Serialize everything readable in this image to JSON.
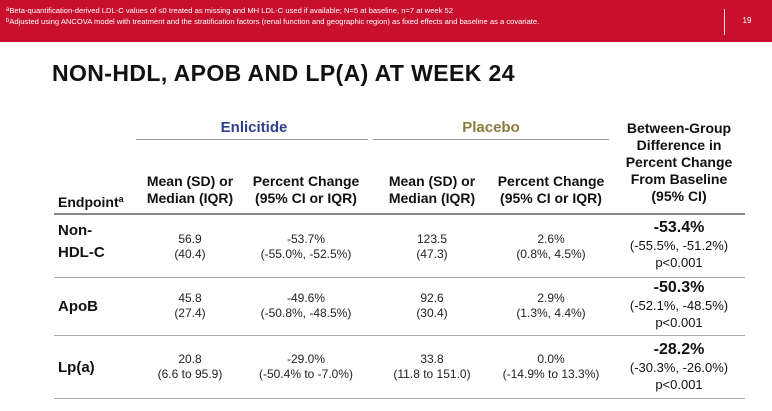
{
  "header": {
    "footnote_a": "Beta-quantification-derived LDL-C values of ≤0 treated as missing and MH LDL-C used if available; N=5 at baseline, n=7 at week 52",
    "footnote_b": "Adjusted using ANCOVA model with treatment and the stratification factors (renal function and geographic region) as fixed effects and baseline as a covariate.",
    "footnote_a_marker": "a",
    "footnote_b_marker": "b",
    "page_number": "19",
    "bar_color": "#c8102e"
  },
  "title": "NON-HDL, APOB AND LP(A) AT WEEK 24",
  "table": {
    "group_enlicitide": "Enlicitide",
    "group_placebo": "Placebo",
    "endpoint_header": "Endpoint",
    "endpoint_header_marker": "a",
    "mean_header_line1": "Mean (SD) or",
    "mean_header_line2": "Median (IQR)",
    "pct_header_line1": "Percent Change",
    "pct_header_line2": "(95% CI or IQR)",
    "between_header_line1": "Between-Group",
    "between_header_line2": "Difference in",
    "between_header_line3": "Percent Change",
    "between_header_line4": "From Baseline",
    "between_header_line5": "(95% CI)",
    "rows": [
      {
        "endpoint_line1": "Non-",
        "endpoint_line2": "HDL-C",
        "enl_mean_line1": "56.9",
        "enl_mean_line2": "(40.4)",
        "enl_pct_line1": "-53.7%",
        "enl_pct_line2": "(-55.0%, -52.5%)",
        "pla_mean_line1": "123.5",
        "pla_mean_line2": "(47.3)",
        "pla_pct_line1": "2.6%",
        "pla_pct_line2": "(0.8%, 4.5%)",
        "diff": "-53.4%",
        "diff_ci": "(-55.5%, -51.2%)",
        "p_value": "p<0.001"
      },
      {
        "endpoint_line1": "ApoB",
        "endpoint_line2": "",
        "enl_mean_line1": "45.8",
        "enl_mean_line2": "(27.4)",
        "enl_pct_line1": "-49.6%",
        "enl_pct_line2": "(-50.8%, -48.5%)",
        "pla_mean_line1": "92.6",
        "pla_mean_line2": "(30.4)",
        "pla_pct_line1": "2.9%",
        "pla_pct_line2": "(1.3%, 4.4%)",
        "diff": "-50.3%",
        "diff_ci": "(-52.1%, -48.5%)",
        "p_value": "p<0.001"
      },
      {
        "endpoint_line1": "Lp(a)",
        "endpoint_line2": "",
        "enl_mean_line1": "20.8",
        "enl_mean_line2": "(6.6 to 95.9)",
        "enl_pct_line1": "-29.0%",
        "enl_pct_line2": "(-50.4% to -7.0%)",
        "pla_mean_line1": "33.8",
        "pla_mean_line2": "(11.8 to 151.0)",
        "pla_pct_line1": "0.0%",
        "pla_pct_line2": "(-14.9% to 13.3%)",
        "diff": "-28.2%",
        "diff_ci": "(-30.3%, -26.0%)",
        "p_value": "p<0.001"
      }
    ]
  },
  "colors": {
    "enlicitide_header": "#2f3f8f",
    "placebo_header": "#8a7c3b"
  }
}
